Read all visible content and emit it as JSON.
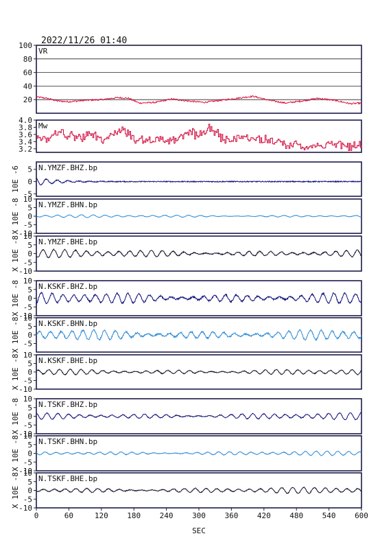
{
  "header": {
    "datetime": "2022/11/26 01:40"
  },
  "xaxis": {
    "label": "SEC",
    "range": [
      0,
      600
    ],
    "ticks": [
      "0",
      "60",
      "120",
      "180",
      "240",
      "300",
      "360",
      "420",
      "480",
      "540",
      "600"
    ]
  },
  "colors": {
    "frame": "#1a1a4a",
    "vr": "#e0103c",
    "mw": "#d00a3c",
    "navy": "#10107a",
    "blue": "#2a8ad8",
    "black": "#101028"
  },
  "chart_data": [
    {
      "type": "line",
      "title": "VR",
      "ylim": [
        0,
        100
      ],
      "yticks": [
        "20",
        "40",
        "60",
        "80",
        "100"
      ],
      "grid": true,
      "series": [
        {
          "x": [
            0,
            20,
            40,
            60,
            90,
            120,
            150,
            170,
            190,
            220,
            250,
            280,
            310,
            340,
            370,
            400,
            430,
            460,
            490,
            520,
            550,
            580,
            600
          ],
          "values": [
            24,
            22,
            18,
            17,
            19,
            20,
            23,
            22,
            15,
            16,
            21,
            18,
            16,
            19,
            22,
            25,
            19,
            15,
            18,
            22,
            19,
            14,
            15
          ]
        }
      ]
    },
    {
      "type": "line",
      "title": "Mw",
      "ylim": [
        3.1,
        4.0
      ],
      "yticks": [
        "3.2",
        "3.4",
        "3.6",
        "3.8",
        "4.0"
      ],
      "series": [
        {
          "x": [
            0,
            20,
            40,
            60,
            80,
            100,
            120,
            140,
            160,
            180,
            200,
            220,
            240,
            260,
            280,
            300,
            320,
            340,
            360,
            380,
            400,
            420,
            440,
            460,
            480,
            500,
            520,
            540,
            560,
            580,
            600
          ],
          "values": [
            3.55,
            3.45,
            3.7,
            3.55,
            3.5,
            3.6,
            3.45,
            3.55,
            3.75,
            3.5,
            3.45,
            3.5,
            3.4,
            3.45,
            3.7,
            3.55,
            3.8,
            3.5,
            3.45,
            3.55,
            3.5,
            3.45,
            3.4,
            3.3,
            3.35,
            3.25,
            3.3,
            3.3,
            3.35,
            3.25,
            3.3
          ]
        }
      ]
    },
    {
      "type": "line",
      "title": "N.YMZF.BHZ.bp",
      "ylabel": "10E -6",
      "ylim": [
        -6,
        8
      ],
      "yticks": [
        "-5",
        "0",
        "5"
      ],
      "series": [
        {
          "amp": 1.6,
          "period": 20,
          "decay": 40
        }
      ]
    },
    {
      "type": "line",
      "title": "N.YMZF.BHN.bp",
      "ylabel": "X 10E -8",
      "ylim": [
        -10,
        10
      ],
      "yticks": [
        "-10",
        "-5",
        "0",
        "5",
        "10"
      ],
      "series": [
        {
          "amp": 0.8,
          "period": 22
        }
      ]
    },
    {
      "type": "line",
      "title": "N.YMZF.BHE.bp",
      "ylabel": "X 10E -8",
      "ylim": [
        -10,
        10
      ],
      "yticks": [
        "-10",
        "-5",
        "0",
        "5",
        "10"
      ],
      "series": [
        {
          "amp": 2.3,
          "period": 20
        }
      ]
    },
    {
      "type": "line",
      "title": "N.KSKF.BHZ.bp",
      "ylabel": "X 10E -8",
      "ylim": [
        -10,
        10
      ],
      "yticks": [
        "-10",
        "-5",
        "0",
        "5",
        "10"
      ],
      "series": [
        {
          "amp": 3.5,
          "period": 20
        }
      ]
    },
    {
      "type": "line",
      "title": "N.KSKF.BHN.bp",
      "ylabel": "X 10E -8",
      "ylim": [
        -10,
        10
      ],
      "yticks": [
        "-5",
        "0",
        "5",
        "10"
      ],
      "series": [
        {
          "amp": 3.5,
          "period": 20
        }
      ]
    },
    {
      "type": "line",
      "title": "N.KSKF.BHE.bp",
      "ylabel": "X 10E -8",
      "ylim": [
        -10,
        10
      ],
      "yticks": [
        "-10",
        "-5",
        "0",
        "5",
        "10"
      ],
      "series": [
        {
          "amp": 1.8,
          "period": 20
        }
      ]
    },
    {
      "type": "line",
      "title": "N.TSKF.BHZ.bp",
      "ylabel": "X 10E -8",
      "ylim": [
        -10,
        10
      ],
      "yticks": [
        "-10",
        "-5",
        "0",
        "5",
        "10"
      ],
      "series": [
        {
          "amp": 2.0,
          "period": 20
        }
      ]
    },
    {
      "type": "line",
      "title": "N.TSKF.BHN.bp",
      "ylabel": "X 10E -8",
      "ylim": [
        -10,
        10
      ],
      "yticks": [
        "-10",
        "-5",
        "0",
        "5",
        "10"
      ],
      "series": [
        {
          "amp": 1.3,
          "period": 20
        }
      ]
    },
    {
      "type": "line",
      "title": "N.TSKF.BHE.bp",
      "ylabel": "X 10E -8",
      "ylim": [
        -10,
        10
      ],
      "yticks": [
        "-10",
        "-5",
        "0",
        "5",
        "10"
      ],
      "series": [
        {
          "amp": 1.8,
          "period": 20
        }
      ]
    }
  ]
}
